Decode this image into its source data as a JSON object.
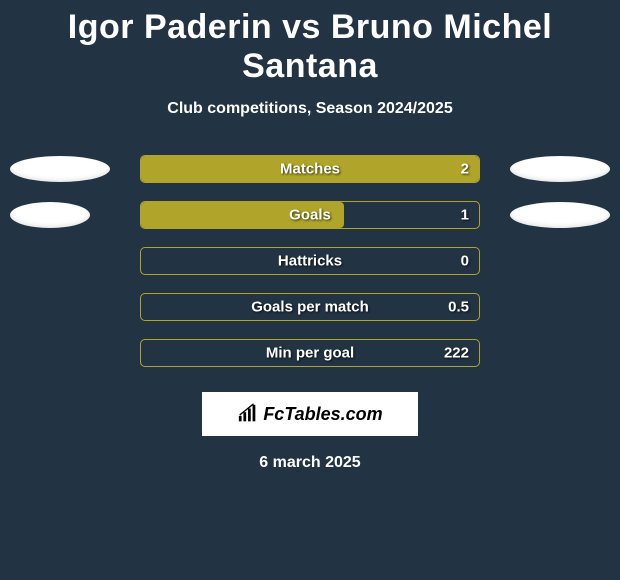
{
  "background_color": "#223344",
  "title": "Igor Paderin vs Bruno Michel Santana",
  "title_color": "#ffffff",
  "title_fontsize": 34,
  "subtitle": "Club competitions, Season 2024/2025",
  "subtitle_color": "#ffffff",
  "subtitle_fontsize": 16,
  "ellipse_color": "#ffffff",
  "rows": [
    {
      "label": "Matches",
      "value": "2",
      "left_ellipse_width": 100,
      "right_ellipse_width": 100,
      "bar_fill_pct": 100,
      "bar_fill_color": "#b0a52a",
      "bar_border_color": "#b0a52a"
    },
    {
      "label": "Goals",
      "value": "1",
      "left_ellipse_width": 80,
      "right_ellipse_width": 100,
      "bar_fill_pct": 60,
      "bar_fill_color": "#b0a52a",
      "bar_border_color": "#b0a52a"
    },
    {
      "label": "Hattricks",
      "value": "0",
      "left_ellipse_width": 0,
      "right_ellipse_width": 0,
      "bar_fill_pct": 0,
      "bar_fill_color": "#b0a52a",
      "bar_border_color": "#b0a52a"
    },
    {
      "label": "Goals per match",
      "value": "0.5",
      "left_ellipse_width": 0,
      "right_ellipse_width": 0,
      "bar_fill_pct": 0,
      "bar_fill_color": "#b0a52a",
      "bar_border_color": "#b0a52a"
    },
    {
      "label": "Min per goal",
      "value": "222",
      "left_ellipse_width": 0,
      "right_ellipse_width": 0,
      "bar_fill_pct": 0,
      "bar_fill_color": "#b0a52a",
      "bar_border_color": "#b0a52a"
    }
  ],
  "bar_label_fontsize": 15,
  "bar_label_color": "#ffffff",
  "brand": {
    "text": "FcTables.com",
    "background": "#ffffff",
    "text_color": "#000000",
    "fontsize": 18
  },
  "date": "6 march 2025",
  "date_color": "#ffffff",
  "date_fontsize": 16
}
